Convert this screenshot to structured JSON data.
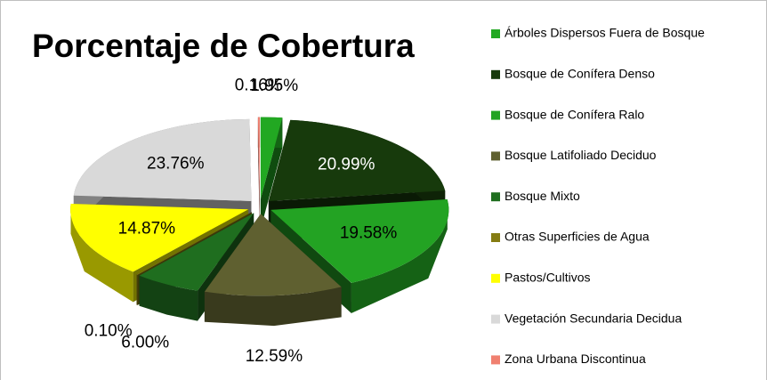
{
  "chart_data": {
    "type": "pie3d",
    "title": "Porcentaje de Cobertura",
    "categories": [
      "Árboles Dispersos Fuera de Bosque",
      "Bosque de Conífera Denso",
      "Bosque de Conífera Ralo",
      "Bosque Latifoliado Deciduo",
      "Bosque Mixto",
      "Otras Superficies de Agua",
      "Pastos/Cultivos",
      "Vegetación Secundaria Decidua",
      "Zona Urbana Discontinua"
    ],
    "values": [
      1.95,
      20.99,
      19.58,
      12.59,
      6.0,
      0.1,
      14.87,
      23.76,
      0.16
    ],
    "value_labels": [
      "1.95%",
      "20.99%",
      "19.58%",
      "12.59%",
      "6.00%",
      "0.10%",
      "14.87%",
      "23.76%",
      "0.16%"
    ],
    "colors": [
      "#22a822",
      "#173a0c",
      "#23a323",
      "#5f6030",
      "#1f6e1f",
      "#857c12",
      "#ffff00",
      "#d9d9d9",
      "#f08070"
    ],
    "legend": "right"
  }
}
